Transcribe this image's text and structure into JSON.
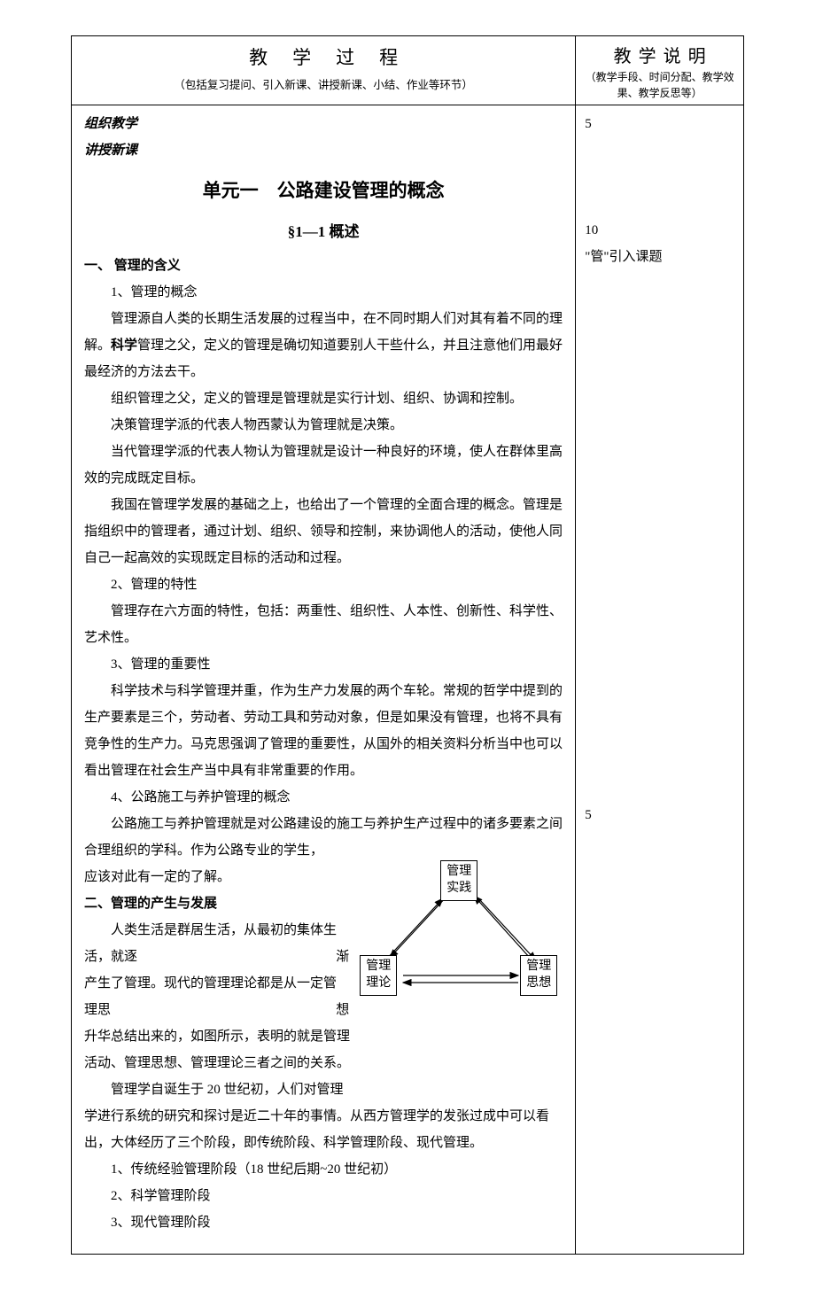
{
  "header": {
    "left_title": "教学过程",
    "left_sub": "（包括复习提问、引入新课、讲授新课、小结、作业等环节）",
    "right_title": "教学说明",
    "right_sub": "（教学手段、时间分配、教学效果、教学反思等）"
  },
  "notes": {
    "n1": "5",
    "n2": "10",
    "n3": "\"管\"引入课题",
    "n4": "5"
  },
  "body": {
    "org": "组织教学",
    "lecture": "讲授新课",
    "unit_title": "单元一　公路建设管理的概念",
    "section_title": "§1—1 概述",
    "s1": "一、 管理的含义",
    "s1_1": "1、管理的概念",
    "p1a": "管理源自人类的长期生活发展的过程当中，在不同时期人们对其有着不同的理解。",
    "p1b": "科学",
    "p1c": "管理之父，定义的管理是确切知道要别人干些什么，并且注意他们用最好最经济的方法去干。",
    "p2": "组织管理之父，定义的管理是管理就是实行计划、组织、协调和控制。",
    "p3": "决策管理学派的代表人物西蒙认为管理就是决策。",
    "p4": "当代管理学派的代表人物认为管理就是设计一种良好的环境，使人在群体里高效的完成既定目标。",
    "p5": "我国在管理学发展的基础之上，也给出了一个管理的全面合理的概念。管理是指组织中的管理者，通过计划、组织、领导和控制，来协调他人的活动，使他人同自己一起高效的实现既定目标的活动和过程。",
    "s1_2": "2、管理的特性",
    "p6": "管理存在六方面的特性，包括：两重性、组织性、人本性、创新性、科学性、艺术性。",
    "s1_3": "3、管理的重要性",
    "p7": "科学技术与科学管理并重，作为生产力发展的两个车轮。常规的哲学中提到的生产要素是三个，劳动者、劳动工具和劳动对象，但是如果没有管理，也将不具有竞争性的生产力。马克思强调了管理的重要性，从国外的相关资料分析当中也可以看出管理在社会生产当中具有非常重要的作用。",
    "s1_4": "4、公路施工与养护管理的概念",
    "p8": "公路施工与养护管理就是对公路建设的施工与养护生产过程中的诸多要素之间合理组织的学科。作为公路专业的学生，",
    "p8b": "应该对此有一定的了解。",
    "s2": "二、管理的产生与发展",
    "p9a": "人类生活是群居生活，从最初的集体生活，就逐",
    "p9a2": "渐",
    "p9b": "产生了管理。现代的管理理论都是从一定管理思",
    "p9b2": "想",
    "p9c": "升华总结出来的，如图所示，表明的就是管理",
    "p9d": "活动、管理思想、管理理论三者之间的关系。",
    "p10": "管理学自诞生于 20 世纪初，人们对管理",
    "p10b": "学进行系统的研究和探讨是近二十年的事情。从西方管理学的发张过成中可以看出，大体经历了三个阶段，即传统阶段、科学管理阶段、现代管理。",
    "l1": "1、传统经验管理阶段（18 世纪后期~20 世纪初）",
    "l2": "2、科学管理阶段",
    "l3": "3、现代管理阶段"
  },
  "diagram": {
    "top": "管理\n实践",
    "left": "管理\n理论",
    "right": "管理\n思想",
    "colors": {
      "line": "#000000",
      "fill": "#000000"
    }
  }
}
